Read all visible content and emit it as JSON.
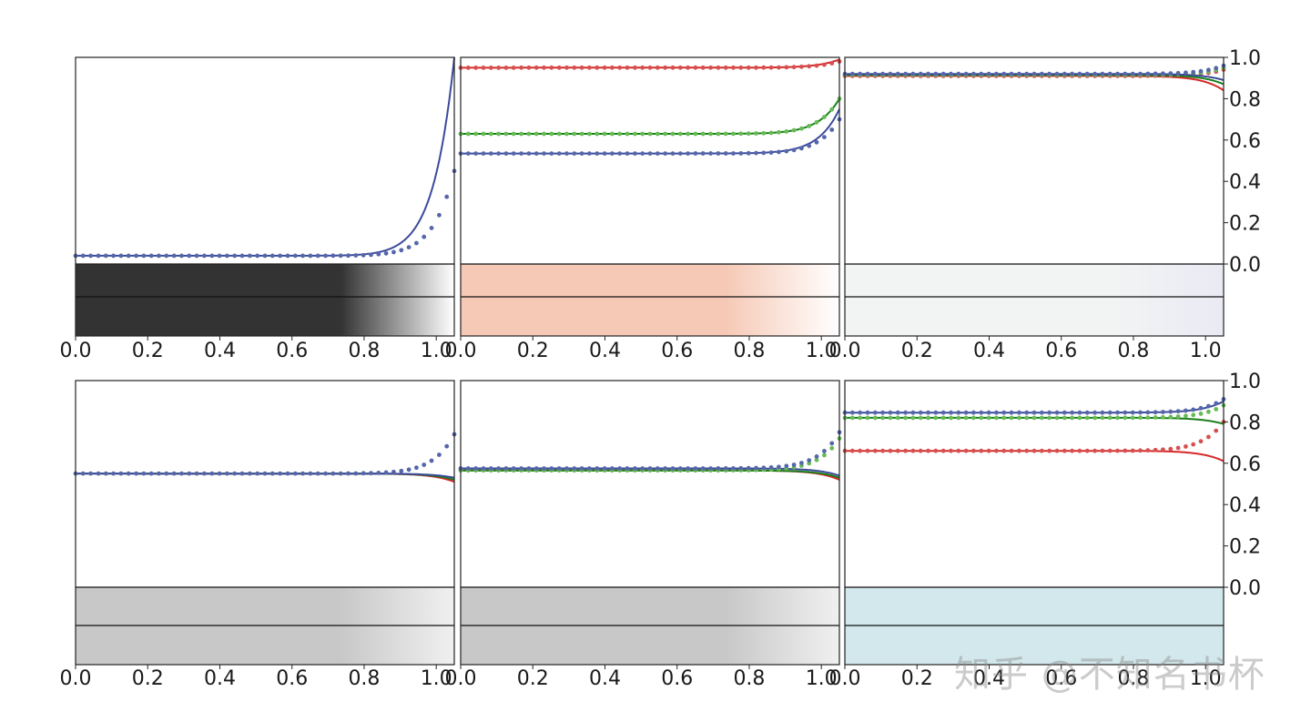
{
  "watermark": "知乎 @不知名书杯",
  "colors": {
    "red": "#d62728",
    "green": "#1a7f1a",
    "blue": "#3b4a9a",
    "red_dot": "#d65050",
    "green_dot": "#66bb55",
    "blue_dot": "#5566aa",
    "frame": "#222222"
  },
  "chart_data": [
    {
      "type": "line",
      "panel": "row1-col1",
      "xlim": [
        0,
        1.05
      ],
      "ylim": [
        0,
        1
      ],
      "xticks": [
        "0.0",
        "0.2",
        "0.4",
        "0.6",
        "0.8",
        "1.0"
      ],
      "yticks": [],
      "series": [
        {
          "color": "blue",
          "style": "line",
          "base": 0.04,
          "tail": 1.0
        },
        {
          "color": "blue",
          "style": "dots",
          "base": 0.04,
          "tail": 0.45
        }
      ],
      "strip": {
        "from": "#333333",
        "to": "#ffffff"
      }
    },
    {
      "type": "line",
      "panel": "row1-col2",
      "xlim": [
        0,
        1.05
      ],
      "ylim": [
        0,
        1
      ],
      "xticks": [
        "0.0",
        "0.2",
        "0.4",
        "0.6",
        "0.8",
        "1.0"
      ],
      "yticks": [],
      "series": [
        {
          "color": "red",
          "style": "line",
          "base": 0.95,
          "tail": 0.99
        },
        {
          "color": "red",
          "style": "dots",
          "base": 0.95,
          "tail": 0.98
        },
        {
          "color": "green",
          "style": "line",
          "base": 0.63,
          "tail": 0.8
        },
        {
          "color": "green",
          "style": "dots",
          "base": 0.63,
          "tail": 0.8
        },
        {
          "color": "blue",
          "style": "line",
          "base": 0.535,
          "tail": 0.75
        },
        {
          "color": "blue",
          "style": "dots",
          "base": 0.535,
          "tail": 0.7
        }
      ],
      "strip": {
        "from": "#f6c9b6",
        "to": "#ffffff"
      }
    },
    {
      "type": "line",
      "panel": "row1-col3",
      "xlim": [
        0,
        1.05
      ],
      "ylim": [
        0,
        1
      ],
      "xticks": [
        "0.0",
        "0.2",
        "0.4",
        "0.6",
        "0.8",
        "1.0"
      ],
      "yticks": [
        "0.0",
        "0.2",
        "0.4",
        "0.6",
        "0.8",
        "1.0"
      ],
      "series": [
        {
          "color": "red",
          "style": "line",
          "base": 0.91,
          "tail": 0.84
        },
        {
          "color": "red",
          "style": "dots",
          "base": 0.91,
          "tail": 0.94
        },
        {
          "color": "green",
          "style": "line",
          "base": 0.915,
          "tail": 0.87
        },
        {
          "color": "green",
          "style": "dots",
          "base": 0.915,
          "tail": 0.95
        },
        {
          "color": "blue",
          "style": "line",
          "base": 0.92,
          "tail": 0.89
        },
        {
          "color": "blue",
          "style": "dots",
          "base": 0.92,
          "tail": 0.96
        }
      ],
      "strip": {
        "from": "#f2f4f3",
        "to": "#eaeaf4"
      }
    },
    {
      "type": "line",
      "panel": "row2-col1",
      "xlim": [
        0,
        1.05
      ],
      "ylim": [
        0,
        1
      ],
      "xticks": [
        "0.0",
        "0.2",
        "0.4",
        "0.6",
        "0.8",
        "1.0"
      ],
      "yticks": [],
      "series": [
        {
          "color": "red",
          "style": "line",
          "base": 0.55,
          "tail": 0.51
        },
        {
          "color": "green",
          "style": "line",
          "base": 0.55,
          "tail": 0.52
        },
        {
          "color": "blue",
          "style": "line",
          "base": 0.55,
          "tail": 0.53
        },
        {
          "color": "blue",
          "style": "dots",
          "base": 0.55,
          "tail": 0.74
        }
      ],
      "strip": {
        "from": "#c8c8c8",
        "to": "#f0f0f0"
      }
    },
    {
      "type": "line",
      "panel": "row2-col2",
      "xlim": [
        0,
        1.05
      ],
      "ylim": [
        0,
        1
      ],
      "xticks": [
        "0.0",
        "0.2",
        "0.4",
        "0.6",
        "0.8",
        "1.0"
      ],
      "yticks": [],
      "series": [
        {
          "color": "red",
          "style": "line",
          "base": 0.565,
          "tail": 0.52
        },
        {
          "color": "green",
          "style": "line",
          "base": 0.565,
          "tail": 0.53
        },
        {
          "color": "blue",
          "style": "line",
          "base": 0.575,
          "tail": 0.54
        },
        {
          "color": "green",
          "style": "dots",
          "base": 0.565,
          "tail": 0.72
        },
        {
          "color": "blue",
          "style": "dots",
          "base": 0.575,
          "tail": 0.75
        }
      ],
      "strip": {
        "from": "#c8c8c8",
        "to": "#f0f0f0"
      }
    },
    {
      "type": "line",
      "panel": "row2-col3",
      "xlim": [
        0,
        1.05
      ],
      "ylim": [
        0,
        1
      ],
      "xticks": [
        "0.0",
        "0.2",
        "0.4",
        "0.6",
        "0.8",
        "1.0"
      ],
      "yticks": [
        "0.0",
        "0.2",
        "0.4",
        "0.6",
        "0.8",
        "1.0"
      ],
      "series": [
        {
          "color": "red",
          "style": "line",
          "base": 0.66,
          "tail": 0.61
        },
        {
          "color": "red",
          "style": "dots",
          "base": 0.66,
          "tail": 0.8
        },
        {
          "color": "green",
          "style": "line",
          "base": 0.82,
          "tail": 0.79
        },
        {
          "color": "green",
          "style": "dots",
          "base": 0.82,
          "tail": 0.88
        },
        {
          "color": "blue",
          "style": "line",
          "base": 0.845,
          "tail": 0.9
        },
        {
          "color": "blue",
          "style": "dots",
          "base": 0.845,
          "tail": 0.91
        }
      ],
      "strip": {
        "from": "#d2e8ec",
        "to": "#d2e8ec"
      }
    }
  ]
}
